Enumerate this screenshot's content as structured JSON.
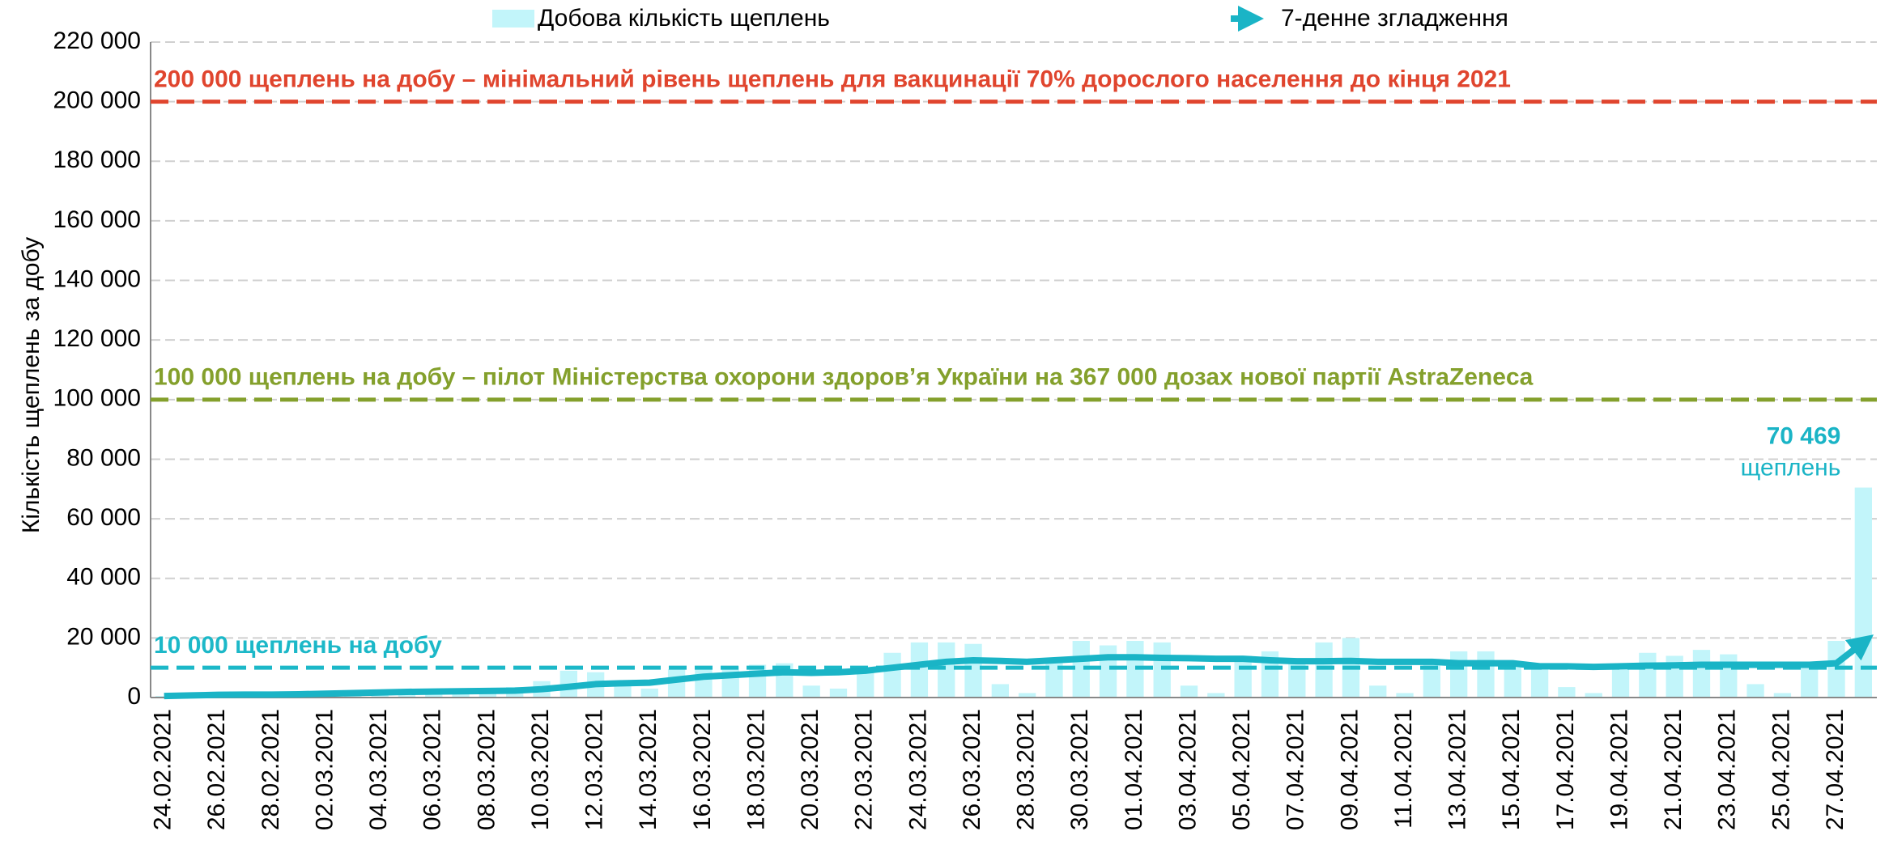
{
  "chart_data": {
    "type": "bar+line",
    "y_axis_label": "Кількість щеплень за добу",
    "categories": [
      "24.02.2021",
      null,
      "26.02.2021",
      null,
      "28.02.2021",
      null,
      "02.03.2021",
      null,
      "04.03.2021",
      null,
      "06.03.2021",
      null,
      "08.03.2021",
      null,
      "10.03.2021",
      null,
      "12.03.2021",
      null,
      "14.03.2021",
      null,
      "16.03.2021",
      null,
      "18.03.2021",
      null,
      "20.03.2021",
      null,
      "22.03.2021",
      null,
      "24.03.2021",
      null,
      "26.03.2021",
      null,
      "28.03.2021",
      null,
      "30.03.2021",
      null,
      "01.04.2021",
      null,
      "03.04.2021",
      null,
      "05.04.2021",
      null,
      "07.04.2021",
      null,
      "09.04.2021",
      null,
      "11.04.2021",
      null,
      "13.04.2021",
      null,
      "15.04.2021",
      null,
      "17.04.2021",
      null,
      "19.04.2021",
      null,
      "21.04.2021",
      null,
      "23.04.2021",
      null,
      "25.04.2021",
      null,
      "27.04.2021",
      null
    ],
    "series": [
      {
        "name": "Добова кількість щеплень",
        "type": "bar",
        "color": "#c2f5fa",
        "values": [
          500,
          700,
          1200,
          1000,
          800,
          1500,
          1800,
          2000,
          2200,
          2500,
          2000,
          1500,
          2800,
          3500,
          5500,
          9000,
          8500,
          4000,
          3000,
          9500,
          10000,
          10500,
          11000,
          11500,
          4000,
          3000,
          10000,
          15000,
          18500,
          18500,
          18000,
          4500,
          1500,
          13000,
          19000,
          17500,
          19000,
          18500,
          4000,
          1500,
          14000,
          15500,
          12000,
          18500,
          20000,
          4000,
          1500,
          12000,
          15500,
          15500,
          12000,
          10000,
          3500,
          1500,
          11000,
          15000,
          14000,
          16000,
          14500,
          4500,
          1500,
          10000,
          19000,
          70469
        ],
        "value_labels": [
          null,
          null,
          null,
          null,
          null,
          null,
          null,
          null,
          null,
          null,
          null,
          null,
          null,
          null,
          null,
          null,
          null,
          null,
          null,
          null,
          null,
          null,
          null,
          null,
          null,
          null,
          null,
          null,
          null,
          null,
          null,
          null,
          null,
          null,
          null,
          null,
          null,
          null,
          null,
          null,
          null,
          null,
          null,
          null,
          null,
          null,
          null,
          null,
          null,
          null,
          null,
          null,
          null,
          null,
          null,
          null,
          null,
          null,
          null,
          null,
          null,
          null,
          null,
          "70 469"
        ]
      },
      {
        "name": "7-денне згладження",
        "type": "line",
        "color": "#1ab4c6",
        "values": [
          500,
          700,
          900,
          1000,
          1000,
          1100,
          1300,
          1500,
          1700,
          1900,
          2000,
          2100,
          2200,
          2300,
          2800,
          3600,
          4500,
          4800,
          5000,
          6000,
          7000,
          7500,
          8000,
          8500,
          8300,
          8500,
          9000,
          10000,
          11000,
          12000,
          12500,
          12300,
          12000,
          12500,
          13000,
          13500,
          13500,
          13300,
          13200,
          13000,
          13000,
          12500,
          12200,
          12200,
          12300,
          12000,
          12000,
          12000,
          11500,
          11500,
          11500,
          10500,
          10500,
          10300,
          10500,
          10700,
          10800,
          11000,
          11000,
          11000,
          11000,
          11000,
          11500,
          18500
        ]
      }
    ],
    "annotations": [
      {
        "text": "щеплень"
      }
    ],
    "reference_lines": [
      {
        "value": 200000,
        "label": "200 000 щеплень на добу – мінімальний рівень щеплень для вакцинації 70% дорослого населення до кінця 2021",
        "color": "#e0452e"
      },
      {
        "value": 100000,
        "label": "100 000 щеплень на добу – пілот Міністерства охорони здоров’я України на 367 000 дозах нової партії AstraZeneca",
        "color": "#84a02c"
      },
      {
        "value": 10000,
        "label": "10 000 щеплень на добу",
        "color": "#1cb8c8"
      }
    ],
    "ylim": [
      0,
      220000
    ],
    "yticks": [
      0,
      {
        "value": 20000,
        "label": "20 000"
      },
      {
        "value": 40000,
        "label": "40 000"
      },
      {
        "value": 60000,
        "label": "60 000"
      },
      {
        "value": 80000,
        "label": "80 000"
      },
      {
        "value": 100000,
        "label": "100 000"
      },
      {
        "value": 120000,
        "label": "120 000"
      },
      {
        "value": 140000,
        "label": "140 000"
      },
      {
        "value": 160000,
        "label": "160 000"
      },
      {
        "value": 180000,
        "label": "180 000"
      },
      {
        "value": 200000,
        "label": "200 000"
      },
      {
        "value": 220000,
        "label": "220 000"
      }
    ],
    "grid": true,
    "legend": "top"
  }
}
